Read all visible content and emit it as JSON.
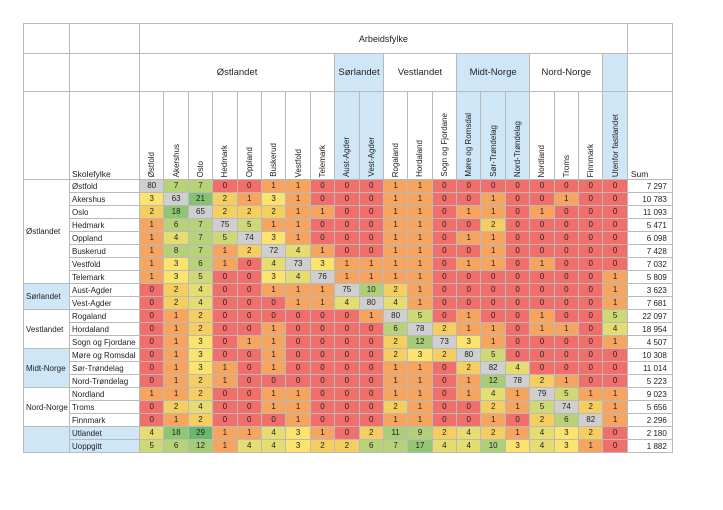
{
  "chart_data": {
    "type": "heatmap",
    "title": "",
    "column_axis_label": "Arbeidsfylke",
    "row_axis_label": "Skolefylke",
    "sum_label": "Sum",
    "column_groups": [
      {
        "name": "Østlandet",
        "columns": [
          "Østfold",
          "Akershus",
          "Oslo",
          "Hedmark",
          "Oppland",
          "Buskerud",
          "Vestfold",
          "Telemark"
        ]
      },
      {
        "name": "Sørlandet",
        "columns": [
          "Aust-Agder",
          "Vest-Agder"
        ]
      },
      {
        "name": "Vestlandet",
        "columns": [
          "Rogaland",
          "Hordaland",
          "Sogn og Fjordane"
        ]
      },
      {
        "name": "Midt-Norge",
        "columns": [
          "Møre og Romsdal",
          "Sør-Trøndelag",
          "Nord-Trøndelag"
        ]
      },
      {
        "name": "Nord-Norge",
        "columns": [
          "Nordland",
          "Troms",
          "Finnmark"
        ]
      },
      {
        "name": "",
        "columns": [
          "Utenfor fastlandet"
        ]
      }
    ],
    "row_groups": [
      {
        "name": "Østlandet",
        "rows": [
          {
            "name": "Østfold",
            "values": [
              80,
              7,
              7,
              0,
              0,
              1,
              1,
              0,
              0,
              0,
              1,
              1,
              0,
              0,
              0,
              0,
              0,
              0,
              0,
              0
            ],
            "sum": "7 297"
          },
          {
            "name": "Akershus",
            "values": [
              3,
              63,
              21,
              2,
              1,
              3,
              1,
              0,
              0,
              0,
              1,
              1,
              0,
              0,
              1,
              0,
              0,
              1,
              0,
              0
            ],
            "sum": "10 783"
          },
          {
            "name": "Oslo",
            "values": [
              2,
              18,
              65,
              2,
              2,
              2,
              1,
              1,
              0,
              0,
              1,
              1,
              0,
              1,
              1,
              0,
              1,
              0,
              0,
              0
            ],
            "sum": "11 093"
          },
          {
            "name": "Hedmark",
            "values": [
              1,
              6,
              7,
              75,
              5,
              1,
              1,
              0,
              0,
              0,
              1,
              1,
              0,
              0,
              2,
              0,
              0,
              0,
              0,
              0
            ],
            "sum": "5 471"
          },
          {
            "name": "Oppland",
            "values": [
              1,
              4,
              7,
              5,
              74,
              3,
              1,
              0,
              0,
              0,
              1,
              1,
              0,
              1,
              1,
              0,
              0,
              0,
              0,
              0
            ],
            "sum": "6 098"
          },
          {
            "name": "Buskerud",
            "values": [
              1,
              8,
              7,
              1,
              2,
              72,
              4,
              1,
              0,
              0,
              1,
              1,
              0,
              0,
              1,
              0,
              0,
              0,
              0,
              0
            ],
            "sum": "7 428"
          },
          {
            "name": "Vestfold",
            "values": [
              1,
              3,
              6,
              1,
              0,
              4,
              73,
              3,
              1,
              1,
              1,
              1,
              0,
              1,
              1,
              0,
              1,
              0,
              0,
              0
            ],
            "sum": "7 032"
          },
          {
            "name": "Telemark",
            "values": [
              1,
              3,
              5,
              0,
              0,
              3,
              4,
              76,
              1,
              1,
              1,
              1,
              0,
              0,
              0,
              0,
              0,
              0,
              0,
              1
            ],
            "sum": "5 809"
          }
        ]
      },
      {
        "name": "Sørlandet",
        "rows": [
          {
            "name": "Aust-Agder",
            "values": [
              0,
              2,
              4,
              0,
              0,
              1,
              1,
              1,
              75,
              10,
              2,
              1,
              0,
              0,
              0,
              0,
              0,
              0,
              0,
              1
            ],
            "sum": "3 623"
          },
          {
            "name": "Vest-Agder",
            "values": [
              0,
              2,
              4,
              0,
              0,
              0,
              1,
              1,
              4,
              80,
              4,
              1,
              0,
              0,
              0,
              0,
              0,
              0,
              0,
              1
            ],
            "sum": "7 681"
          }
        ]
      },
      {
        "name": "Vestlandet",
        "rows": [
          {
            "name": "Rogaland",
            "values": [
              0,
              1,
              2,
              0,
              0,
              0,
              0,
              0,
              0,
              1,
              80,
              5,
              0,
              1,
              0,
              0,
              1,
              0,
              0,
              5
            ],
            "sum": "22 097"
          },
          {
            "name": "Hordaland",
            "values": [
              0,
              1,
              2,
              0,
              0,
              1,
              0,
              0,
              0,
              0,
              6,
              78,
              2,
              1,
              1,
              0,
              1,
              1,
              0,
              4
            ],
            "sum": "18 954"
          },
          {
            "name": "Sogn og Fjordane",
            "values": [
              0,
              1,
              3,
              0,
              1,
              1,
              0,
              0,
              0,
              0,
              2,
              12,
              73,
              3,
              1,
              0,
              0,
              0,
              0,
              1
            ],
            "sum": "4 507"
          }
        ]
      },
      {
        "name": "Midt-Norge",
        "rows": [
          {
            "name": "Møre og Romsdal",
            "values": [
              0,
              1,
              3,
              0,
              0,
              1,
              0,
              0,
              0,
              0,
              2,
              3,
              2,
              80,
              5,
              0,
              0,
              0,
              0,
              0
            ],
            "sum": "10 308"
          },
          {
            "name": "Sør-Trøndelag",
            "values": [
              0,
              1,
              3,
              1,
              0,
              1,
              0,
              0,
              0,
              0,
              1,
              1,
              0,
              2,
              82,
              4,
              0,
              0,
              0,
              0
            ],
            "sum": "11 014"
          },
          {
            "name": "Nord-Trøndelag",
            "values": [
              0,
              1,
              2,
              1,
              0,
              0,
              0,
              0,
              0,
              0,
              1,
              1,
              0,
              1,
              12,
              78,
              2,
              1,
              0,
              0
            ],
            "sum": "5 223"
          }
        ]
      },
      {
        "name": "Nord-Norge",
        "rows": [
          {
            "name": "Nordland",
            "values": [
              1,
              1,
              2,
              0,
              0,
              1,
              1,
              0,
              0,
              0,
              1,
              1,
              0,
              1,
              4,
              1,
              79,
              5,
              1,
              1
            ],
            "sum": "9 023"
          },
          {
            "name": "Troms",
            "values": [
              0,
              2,
              4,
              0,
              0,
              1,
              1,
              0,
              0,
              0,
              2,
              1,
              0,
              0,
              2,
              1,
              5,
              74,
              2,
              1
            ],
            "sum": "5 656"
          },
          {
            "name": "Finnmark",
            "values": [
              0,
              1,
              2,
              0,
              0,
              0,
              1,
              0,
              0,
              0,
              1,
              1,
              0,
              0,
              1,
              0,
              2,
              6,
              82,
              1
            ],
            "sum": "2 296"
          }
        ]
      },
      {
        "name": "",
        "highlight": true,
        "rows": [
          {
            "name": "Utlandet",
            "values": [
              4,
              18,
              29,
              1,
              1,
              4,
              3,
              1,
              0,
              2,
              11,
              9,
              2,
              4,
              2,
              1,
              4,
              3,
              2,
              0
            ],
            "sum": "2 180"
          },
          {
            "name": "Uoppgitt",
            "values": [
              5,
              6,
              12,
              1,
              4,
              4,
              3,
              2,
              2,
              6,
              7,
              17,
              4,
              4,
              10,
              3,
              4,
              3,
              1,
              0
            ],
            "sum": "1 882"
          }
        ]
      }
    ],
    "color_scale": {
      "zero": "#f06f6a",
      "low": "#fbe36e",
      "mid": "#b8d27a",
      "high": "#63b86d",
      "diagonal": "#cfcfcf",
      "highlight": "#cfe6f7"
    }
  }
}
